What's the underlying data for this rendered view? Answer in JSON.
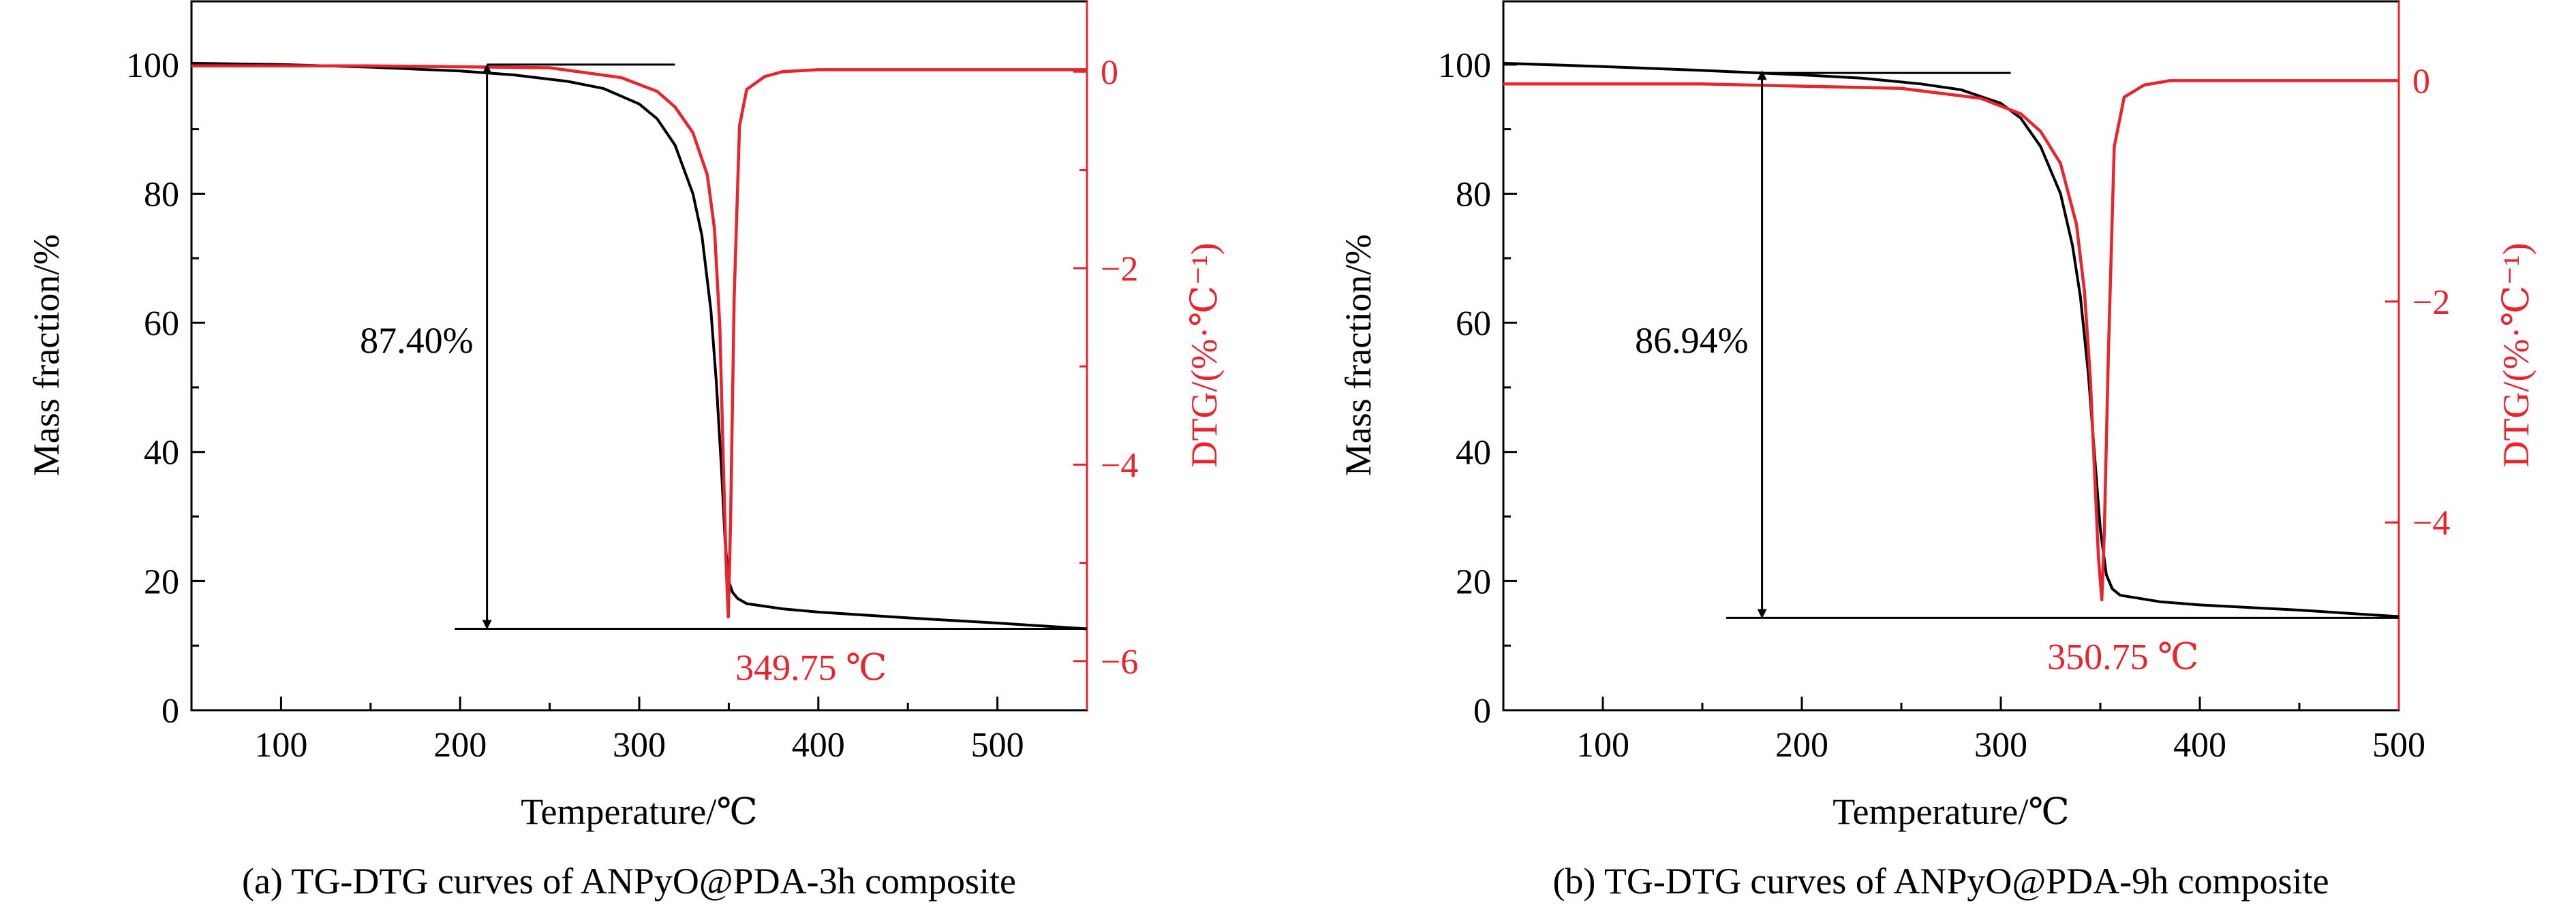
{
  "colors": {
    "tg": "#000000",
    "dtg": "#e8242f",
    "dtg_dark": "#e85a1c",
    "axis": "#000000"
  },
  "chart_data": [
    {
      "type": "line",
      "caption": "(a) TG-DTG curves of ANPyO@PDA-3h composite",
      "xlabel": "Temperature/℃",
      "ylabel": "Mass fraction/%",
      "y2label": "DTG/(%·℃⁻¹)",
      "xlim": [
        50,
        550
      ],
      "ylim": [
        0,
        110
      ],
      "y2lim": [
        -6.5,
        0.73
      ],
      "xticks": [
        100,
        200,
        300,
        400,
        500
      ],
      "yticks": [
        0,
        20,
        40,
        60,
        80,
        100
      ],
      "y2ticks": [
        -6,
        -4,
        -2,
        0
      ],
      "grid": false,
      "series": [
        {
          "axis": "left",
          "color": "#000000",
          "x": [
            50,
            100,
            150,
            200,
            230,
            260,
            280,
            300,
            310,
            320,
            330,
            335,
            340,
            343,
            346,
            348,
            350,
            352,
            355,
            360,
            380,
            400,
            450,
            500,
            550
          ],
          "y": [
            100.2,
            100.0,
            99.6,
            99.0,
            98.4,
            97.4,
            96.3,
            93.9,
            91.6,
            87.5,
            80.0,
            73.5,
            62.0,
            51.0,
            37.0,
            26.0,
            20.0,
            18.3,
            17.3,
            16.5,
            15.7,
            15.2,
            14.3,
            13.5,
            12.6
          ]
        },
        {
          "axis": "right",
          "color": "#e8242f",
          "x": [
            50,
            150,
            250,
            290,
            310,
            320,
            330,
            338,
            342,
            345,
            347,
            348.5,
            349.75,
            351,
            353,
            356,
            360,
            370,
            380,
            400,
            450,
            500,
            550
          ],
          "y": [
            0.06,
            0.06,
            0.04,
            -0.06,
            -0.2,
            -0.36,
            -0.62,
            -1.05,
            -1.6,
            -2.6,
            -4.0,
            -5.0,
            -5.55,
            -4.6,
            -2.3,
            -0.55,
            -0.18,
            -0.05,
            0.0,
            0.02,
            0.02,
            0.02,
            0.02
          ]
        }
      ],
      "annotations": {
        "mass_loss_label": "87.40%",
        "mass_loss_arrow": {
          "x": 215,
          "y_top": 100,
          "y_bottom": 12.6
        },
        "top_line": {
          "x_start": 215,
          "x_end": 320,
          "y": 100
        },
        "bottom_line": {
          "x_start": 197,
          "x_end": 550,
          "y": 12.6
        },
        "peak_label": "349.75 ℃"
      }
    },
    {
      "type": "line",
      "caption": "(b) TG-DTG curves of ANPyO@PDA-9h composite",
      "xlabel": "Temperature/℃",
      "ylabel": "Mass fraction/%",
      "y2label": "DTG/(%·℃⁻¹)",
      "xlim": [
        50,
        500
      ],
      "ylim": [
        0,
        110
      ],
      "y2lim": [
        -5.7,
        0.73
      ],
      "xticks": [
        100,
        200,
        300,
        400,
        500
      ],
      "yticks": [
        0,
        20,
        40,
        60,
        80,
        100
      ],
      "y2ticks": [
        -4,
        -2,
        0
      ],
      "grid": false,
      "series": [
        {
          "axis": "left",
          "color": "#000000",
          "x": [
            50,
            100,
            150,
            200,
            230,
            260,
            280,
            300,
            310,
            320,
            330,
            336,
            340,
            344,
            347,
            350,
            353,
            356,
            360,
            380,
            400,
            450,
            500
          ],
          "y": [
            100.2,
            99.7,
            99.1,
            98.4,
            97.9,
            97.0,
            96.1,
            94.0,
            91.7,
            87.3,
            80.0,
            72.0,
            64.0,
            52.0,
            40.0,
            28.0,
            21.0,
            18.8,
            17.8,
            16.8,
            16.3,
            15.5,
            14.5
          ]
        },
        {
          "axis": "right",
          "color": "#e8242f",
          "x": [
            50,
            150,
            250,
            290,
            310,
            320,
            330,
            338,
            342,
            345,
            347,
            349,
            350.75,
            352,
            354,
            357,
            362,
            372,
            385,
            400,
            450,
            500
          ],
          "y": [
            -0.03,
            -0.03,
            -0.07,
            -0.16,
            -0.3,
            -0.46,
            -0.75,
            -1.3,
            -1.9,
            -2.7,
            -3.5,
            -4.3,
            -4.7,
            -4.1,
            -2.5,
            -0.6,
            -0.15,
            -0.04,
            0.0,
            0.0,
            0.0,
            0.0
          ]
        }
      ],
      "annotations": {
        "mass_loss_label": "86.94%",
        "mass_loss_arrow": {
          "x": 180,
          "y_top": 99,
          "y_bottom": 14.3
        },
        "top_line": {
          "x_start": 180,
          "x_end": 305,
          "y": 98.7
        },
        "bottom_line": {
          "x_start": 162,
          "x_end": 500,
          "y": 14.3
        },
        "peak_label": "350.75 ℃"
      }
    }
  ]
}
